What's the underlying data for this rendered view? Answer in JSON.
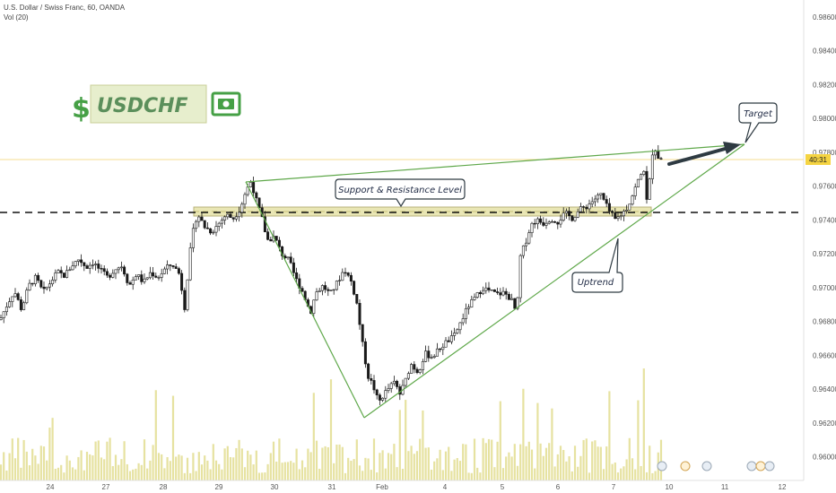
{
  "header": {
    "symbol_line": "U.S. Dollar / Swiss Franc, 60, OANDA",
    "volume_line": "Vol (20)"
  },
  "logo": {
    "dollar": "$",
    "ticker": "USDCHF",
    "money_icon": "banknote-icon"
  },
  "colors": {
    "bull_candle": "#1a1a1a",
    "bear_candle": "#1a1a1a",
    "volume": "#e6e2a0",
    "trendline": "#5fa84a",
    "support_zone": "#e9e6b4",
    "dashed_level": "#111111",
    "price_line": "#f3d36b",
    "price_label_bg": "#f5d442",
    "arrow": "#2e3a42"
  },
  "chart_data": {
    "type": "candlestick",
    "title": "U.S. Dollar / Swiss Franc, 60, OANDA",
    "ylim": [
      0.9586,
      0.987
    ],
    "y_ticks": [
      "0.98600",
      "0.98400",
      "0.98200",
      "0.98000",
      "0.97800",
      "0.97600",
      "0.97400",
      "0.97200",
      "0.97000",
      "0.96800",
      "0.96600",
      "0.96400",
      "0.96200",
      "0.96000"
    ],
    "x_ticks": [
      "24",
      "27",
      "28",
      "29",
      "30",
      "31",
      "Feb",
      "4",
      "5",
      "6",
      "7",
      "10",
      "11",
      "12"
    ],
    "current_price_label": "40:31",
    "current_price": 0.9776,
    "price_path": [
      [
        0,
        0.9681
      ],
      [
        8,
        0.969
      ],
      [
        16,
        0.9698
      ],
      [
        24,
        0.9687
      ],
      [
        32,
        0.9701
      ],
      [
        40,
        0.9706
      ],
      [
        48,
        0.9697
      ],
      [
        56,
        0.9703
      ],
      [
        64,
        0.9709
      ],
      [
        72,
        0.9707
      ],
      [
        80,
        0.9713
      ],
      [
        88,
        0.9717
      ],
      [
        96,
        0.9712
      ],
      [
        104,
        0.9715
      ],
      [
        112,
        0.971
      ],
      [
        120,
        0.9706
      ],
      [
        128,
        0.9711
      ],
      [
        136,
        0.9713
      ],
      [
        144,
        0.9701
      ],
      [
        152,
        0.9708
      ],
      [
        160,
        0.9703
      ],
      [
        168,
        0.9709
      ],
      [
        176,
        0.9706
      ],
      [
        184,
        0.9711
      ],
      [
        192,
        0.9714
      ],
      [
        200,
        0.9708
      ],
      [
        206,
        0.9688
      ],
      [
        210,
        0.9712
      ],
      [
        214,
        0.973
      ],
      [
        220,
        0.9744
      ],
      [
        228,
        0.9736
      ],
      [
        236,
        0.9733
      ],
      [
        244,
        0.9738
      ],
      [
        252,
        0.9743
      ],
      [
        260,
        0.9741
      ],
      [
        268,
        0.9747
      ],
      [
        274,
        0.9757
      ],
      [
        280,
        0.9763
      ],
      [
        286,
        0.9751
      ],
      [
        292,
        0.9741
      ],
      [
        298,
        0.9728
      ],
      [
        306,
        0.973
      ],
      [
        314,
        0.972
      ],
      [
        322,
        0.9716
      ],
      [
        330,
        0.9705
      ],
      [
        338,
        0.9697
      ],
      [
        346,
        0.9685
      ],
      [
        352,
        0.9697
      ],
      [
        360,
        0.9701
      ],
      [
        368,
        0.9696
      ],
      [
        376,
        0.9703
      ],
      [
        384,
        0.9711
      ],
      [
        392,
        0.9703
      ],
      [
        398,
        0.969
      ],
      [
        404,
        0.9667
      ],
      [
        410,
        0.9648
      ],
      [
        416,
        0.9642
      ],
      [
        422,
        0.9632
      ],
      [
        428,
        0.9637
      ],
      [
        434,
        0.9641
      ],
      [
        440,
        0.9644
      ],
      [
        446,
        0.9637
      ],
      [
        452,
        0.9645
      ],
      [
        458,
        0.9655
      ],
      [
        466,
        0.965
      ],
      [
        474,
        0.9661
      ],
      [
        482,
        0.9659
      ],
      [
        490,
        0.9664
      ],
      [
        498,
        0.9668
      ],
      [
        506,
        0.9671
      ],
      [
        514,
        0.968
      ],
      [
        522,
        0.9689
      ],
      [
        530,
        0.9694
      ],
      [
        538,
        0.97
      ],
      [
        546,
        0.9698
      ],
      [
        554,
        0.9696
      ],
      [
        562,
        0.9697
      ],
      [
        570,
        0.9693
      ],
      [
        576,
        0.9684
      ],
      [
        580,
        0.9718
      ],
      [
        586,
        0.9727
      ],
      [
        592,
        0.9737
      ],
      [
        598,
        0.974
      ],
      [
        606,
        0.9738
      ],
      [
        614,
        0.9741
      ],
      [
        622,
        0.9739
      ],
      [
        630,
        0.9744
      ],
      [
        638,
        0.9741
      ],
      [
        646,
        0.9746
      ],
      [
        654,
        0.9748
      ],
      [
        662,
        0.9752
      ],
      [
        670,
        0.9755
      ],
      [
        678,
        0.9746
      ],
      [
        686,
        0.974
      ],
      [
        694,
        0.9744
      ],
      [
        700,
        0.9748
      ],
      [
        706,
        0.9756
      ],
      [
        712,
        0.9764
      ],
      [
        718,
        0.977
      ],
      [
        722,
        0.9745
      ],
      [
        726,
        0.9778
      ],
      [
        730,
        0.9783
      ],
      [
        734,
        0.9777
      ],
      [
        738,
        0.9776
      ]
    ]
  },
  "annotations": {
    "support_label": "Support & Resistance Level",
    "uptrend_label": "Uptrend",
    "target_label": "Target"
  }
}
